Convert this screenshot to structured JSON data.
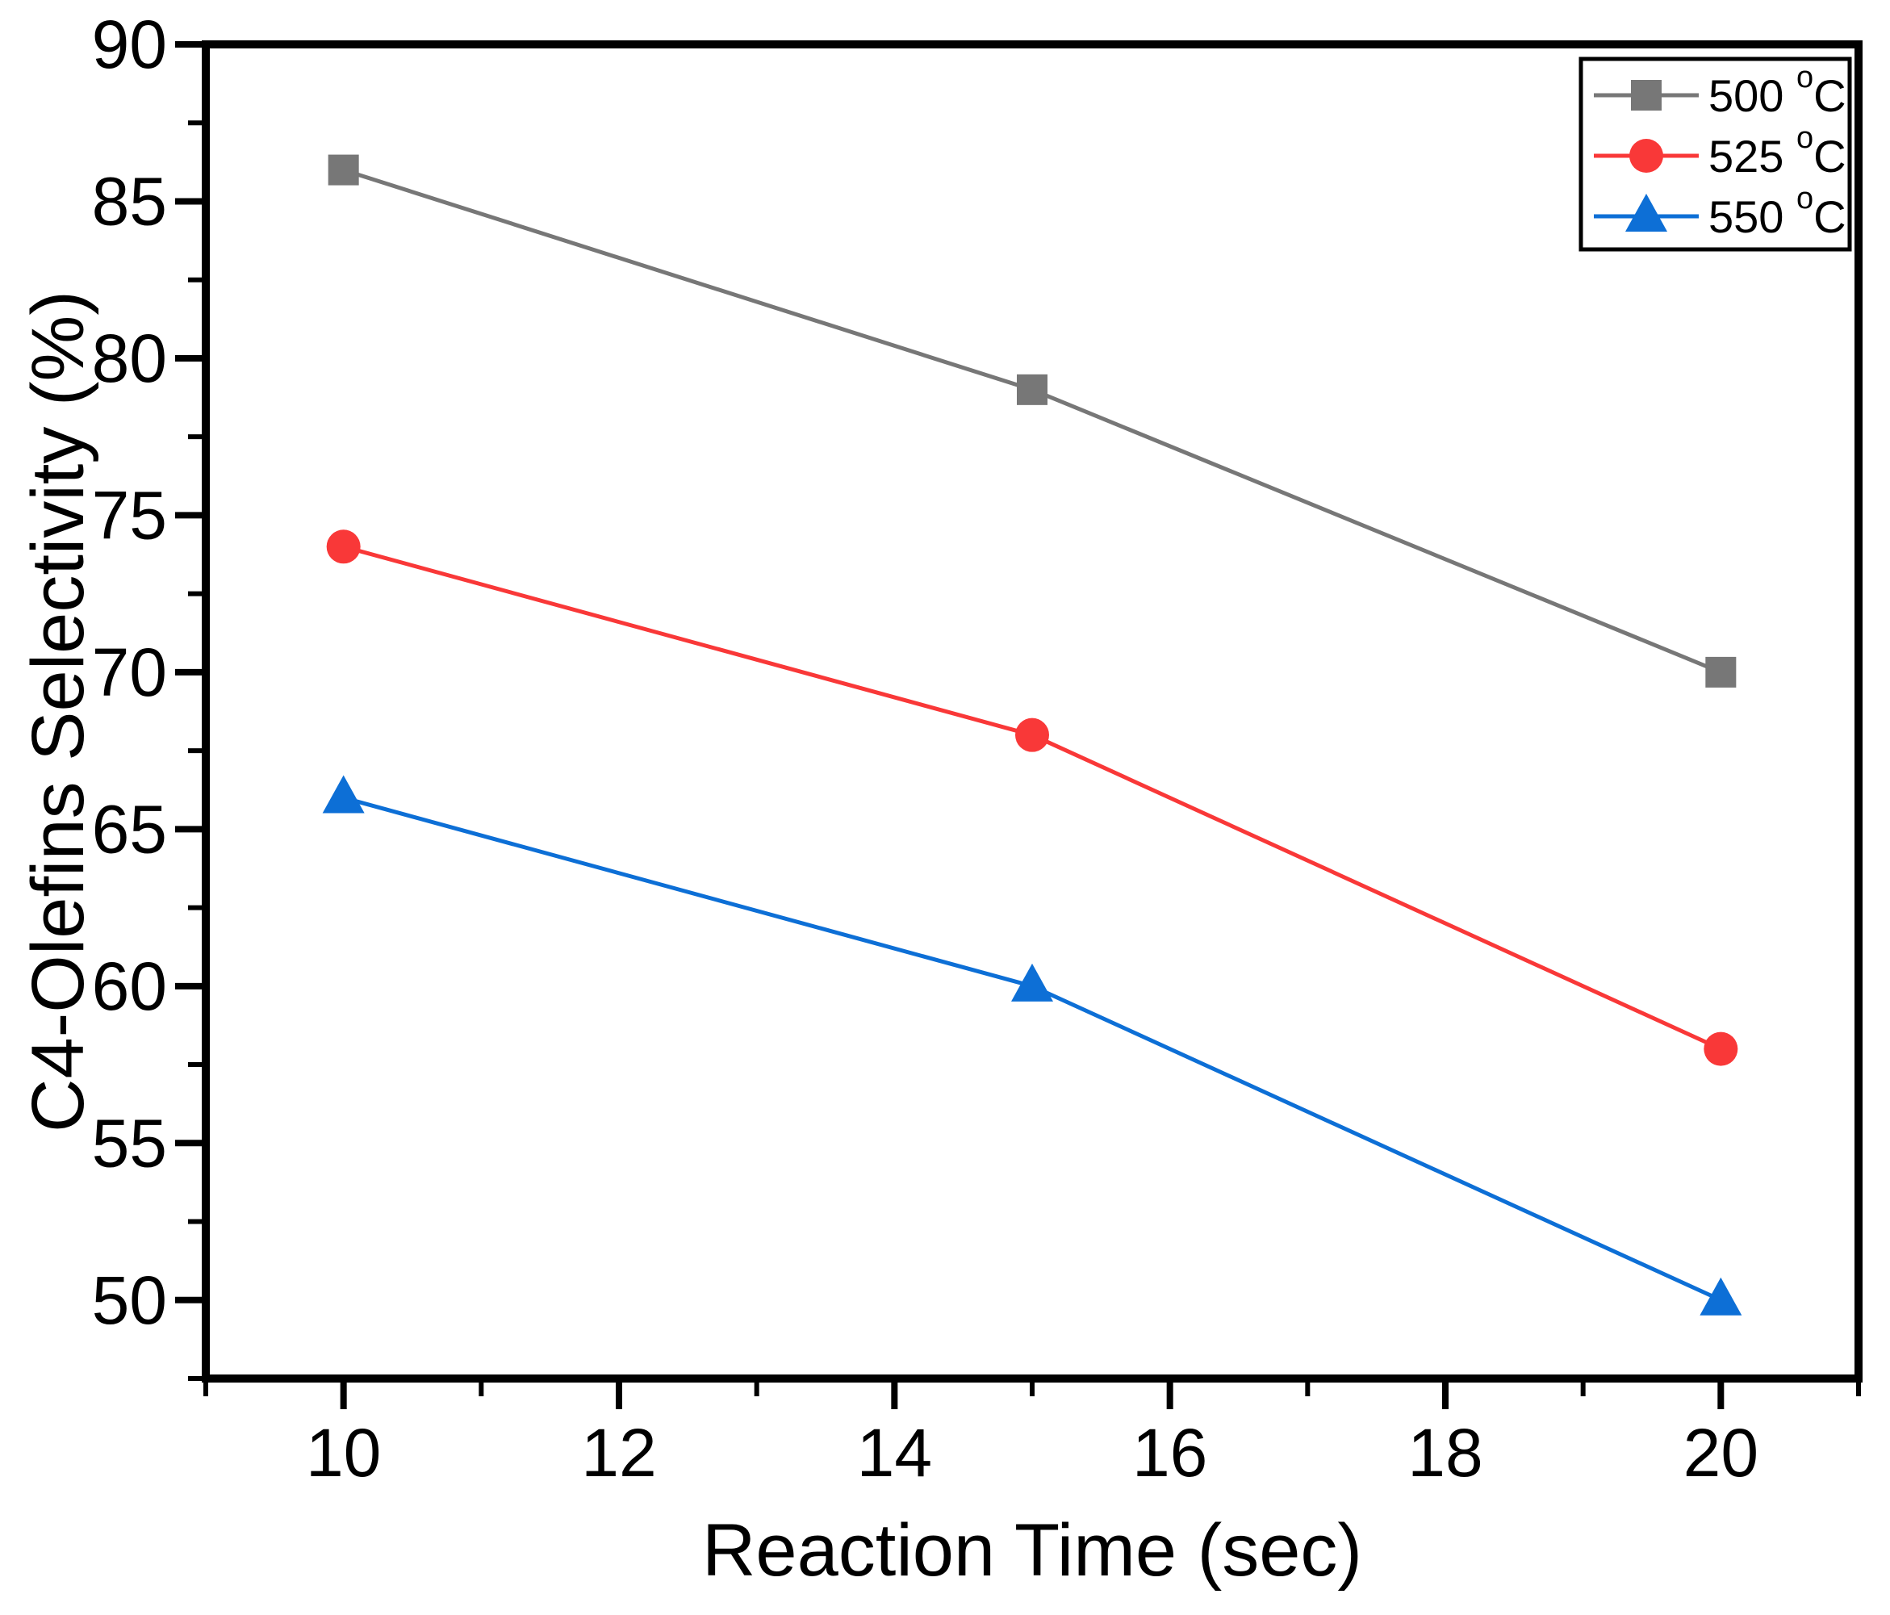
{
  "chart_data": {
    "type": "line",
    "title": "",
    "xlabel": "Reaction Time (sec)",
    "ylabel": "C4-Olefins Selectivity (%)",
    "x": [
      10,
      15,
      20
    ],
    "series": [
      {
        "name": "500 °C",
        "legend_label": "500 °C",
        "color": "#777777",
        "marker": "square",
        "values": [
          86,
          79,
          70
        ]
      },
      {
        "name": "525 °C",
        "legend_label": "525 °C",
        "color": "#F93838",
        "marker": "circle",
        "values": [
          74,
          68,
          58
        ]
      },
      {
        "name": "550 °C",
        "legend_label": "550 °C",
        "color": "#0D6FD6",
        "marker": "triangle",
        "values": [
          66,
          60,
          50
        ]
      }
    ],
    "xlim": [
      9,
      21
    ],
    "ylim": [
      47.5,
      90
    ],
    "x_major_ticks": [
      10,
      12,
      14,
      16,
      18,
      20
    ],
    "x_minor_ticks": [
      9,
      11,
      13,
      15,
      17,
      19,
      21
    ],
    "y_major_ticks": [
      50,
      55,
      60,
      65,
      70,
      75,
      80,
      85,
      90
    ],
    "y_minor_ticks": [
      47.5,
      52.5,
      57.5,
      62.5,
      67.5,
      72.5,
      77.5,
      82.5,
      87.5
    ],
    "grid": false,
    "legend_position": "top-right",
    "axis_color": "#000000",
    "background_color": "#FFFFFF"
  }
}
